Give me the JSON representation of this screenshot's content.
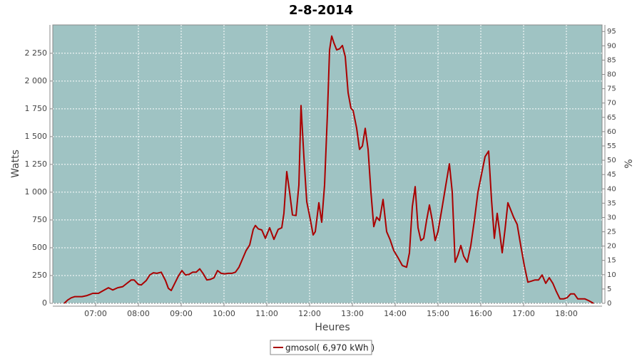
{
  "chart_data": {
    "type": "line",
    "title": "2-8-2014",
    "x_label": "Heures",
    "y_label": "Watts",
    "y2_label": "%",
    "x": [
      "06:16",
      "06:21",
      "06:26",
      "06:31",
      "06:41",
      "06:48",
      "06:56",
      "07:04",
      "07:11",
      "07:18",
      "07:24",
      "07:31",
      "07:38",
      "07:44",
      "07:50",
      "07:54",
      "08:00",
      "08:04",
      "08:11",
      "08:16",
      "08:21",
      "08:26",
      "08:32",
      "08:38",
      "08:42",
      "08:46",
      "08:51",
      "08:56",
      "09:01",
      "09:06",
      "09:11",
      "09:16",
      "09:21",
      "09:26",
      "09:31",
      "09:36",
      "09:41",
      "09:46",
      "09:51",
      "09:56",
      "10:01",
      "10:06",
      "10:11",
      "10:16",
      "10:21",
      "10:26",
      "10:31",
      "10:36",
      "10:41",
      "10:44",
      "10:48",
      "10:53",
      "10:58",
      "11:04",
      "11:10",
      "11:16",
      "11:21",
      "11:24",
      "11:28",
      "11:32",
      "11:36",
      "11:41",
      "11:45",
      "11:48",
      "11:52",
      "11:56",
      "12:01",
      "12:05",
      "12:08",
      "12:13",
      "12:17",
      "12:21",
      "12:25",
      "12:28",
      "12:31",
      "12:34",
      "12:38",
      "12:42",
      "12:46",
      "12:50",
      "12:54",
      "12:58",
      "13:01",
      "13:06",
      "13:10",
      "13:14",
      "13:18",
      "13:22",
      "13:26",
      "13:30",
      "13:34",
      "13:38",
      "13:43",
      "13:48",
      "13:53",
      "13:58",
      "14:04",
      "14:10",
      "14:16",
      "14:20",
      "14:24",
      "14:28",
      "14:32",
      "14:36",
      "14:40",
      "14:44",
      "14:48",
      "14:52",
      "14:56",
      "15:00",
      "15:06",
      "15:11",
      "15:16",
      "15:20",
      "15:24",
      "15:28",
      "15:32",
      "15:36",
      "15:41",
      "15:46",
      "15:51",
      "15:56",
      "16:01",
      "16:06",
      "16:11",
      "16:15",
      "16:19",
      "16:23",
      "16:26",
      "16:30",
      "16:34",
      "16:38",
      "16:42",
      "16:46",
      "16:51",
      "16:56",
      "17:01",
      "17:06",
      "17:11",
      "17:16",
      "17:21",
      "17:26",
      "17:31",
      "17:36",
      "17:41",
      "17:46",
      "17:51",
      "17:56",
      "18:01",
      "18:06",
      "18:11",
      "18:16",
      "18:21",
      "18:26",
      "18:31",
      "18:34",
      "18:38"
    ],
    "series": [
      {
        "name": "gmosol( 6,970 kWh )",
        "color": "#aa0000",
        "values": [
          0,
          30,
          50,
          60,
          60,
          70,
          90,
          90,
          115,
          140,
          120,
          140,
          150,
          180,
          210,
          210,
          170,
          165,
          205,
          255,
          275,
          270,
          280,
          205,
          135,
          115,
          180,
          245,
          295,
          255,
          260,
          280,
          280,
          310,
          265,
          210,
          215,
          230,
          295,
          270,
          265,
          270,
          270,
          280,
          325,
          400,
          475,
          525,
          665,
          700,
          670,
          660,
          585,
          680,
          575,
          665,
          680,
          810,
          1185,
          1000,
          795,
          790,
          1065,
          1780,
          1320,
          915,
          755,
          615,
          645,
          905,
          730,
          1065,
          1705,
          2280,
          2405,
          2345,
          2280,
          2290,
          2320,
          2220,
          1895,
          1755,
          1735,
          1575,
          1385,
          1415,
          1575,
          1385,
          1000,
          690,
          775,
          745,
          935,
          645,
          570,
          475,
          410,
          340,
          325,
          455,
          870,
          1050,
          680,
          565,
          585,
          745,
          885,
          745,
          565,
          645,
          870,
          1065,
          1255,
          1000,
          370,
          435,
          520,
          425,
          370,
          520,
          745,
          1000,
          1160,
          1320,
          1370,
          935,
          585,
          810,
          665,
          455,
          665,
          905,
          840,
          775,
          710,
          520,
          340,
          190,
          200,
          210,
          210,
          255,
          180,
          230,
          180,
          105,
          40,
          40,
          50,
          85,
          85,
          40,
          40,
          40,
          25,
          15,
          0
        ]
      }
    ],
    "xlim": [
      "06:00",
      "18:50"
    ],
    "xticks": [
      "07:00",
      "08:00",
      "09:00",
      "10:00",
      "11:00",
      "12:00",
      "13:00",
      "14:00",
      "15:00",
      "16:00",
      "17:00",
      "18:00"
    ],
    "ylim": [
      0,
      2505
    ],
    "yticks": [
      0,
      250,
      500,
      750,
      {
        "value": 1000,
        "label": "1 000"
      },
      {
        "value": 1250,
        "label": "1 250"
      },
      {
        "value": 1500,
        "label": "1 500"
      },
      {
        "value": 1750,
        "label": "1 750"
      },
      {
        "value": 2000,
        "label": "2 000"
      },
      {
        "value": 2250,
        "label": "2 250"
      }
    ],
    "y2lim": [
      0,
      97.3
    ],
    "y2ticks": [
      0,
      5,
      10,
      15,
      20,
      25,
      30,
      35,
      40,
      45,
      50,
      55,
      60,
      65,
      70,
      75,
      80,
      85,
      90,
      95
    ],
    "grid": true,
    "legend": "bottom",
    "background": "#9fc3c3"
  }
}
